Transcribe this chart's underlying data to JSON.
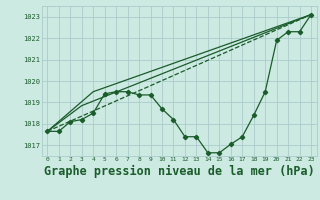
{
  "bg_color": "#cce9e2",
  "grid_color": "#aacccc",
  "line_color": "#1a5c2a",
  "title": "Graphe pression niveau de la mer (hPa)",
  "title_fontsize": 8.5,
  "title_color": "#1a5c2a",
  "ylim": [
    1016.5,
    1023.5
  ],
  "yticks": [
    1017,
    1018,
    1019,
    1020,
    1021,
    1022,
    1023
  ],
  "xlim": [
    -0.5,
    23.5
  ],
  "xticks": [
    0,
    1,
    2,
    3,
    4,
    5,
    6,
    7,
    8,
    9,
    10,
    11,
    12,
    13,
    14,
    15,
    16,
    17,
    18,
    19,
    20,
    21,
    22,
    23
  ],
  "series1_x": [
    0,
    1,
    2,
    3,
    4,
    5,
    6,
    7,
    8,
    9,
    10,
    11,
    12,
    13,
    14,
    15,
    16,
    17,
    18,
    19,
    20,
    21,
    22,
    23
  ],
  "series1_y": [
    1017.65,
    1017.65,
    1018.1,
    1018.2,
    1018.5,
    1019.4,
    1019.5,
    1019.5,
    1019.35,
    1019.35,
    1018.7,
    1018.2,
    1017.4,
    1017.4,
    1016.65,
    1016.65,
    1017.05,
    1017.4,
    1018.4,
    1019.5,
    1021.9,
    1022.3,
    1022.3,
    1023.1
  ],
  "series2_x": [
    0,
    23
  ],
  "series2_y": [
    1017.65,
    1023.1
  ],
  "series3_x": [
    0,
    3,
    23
  ],
  "series3_y": [
    1017.65,
    1018.85,
    1023.1
  ],
  "series4_x": [
    0,
    4,
    23
  ],
  "series4_y": [
    1017.65,
    1019.5,
    1023.1
  ]
}
